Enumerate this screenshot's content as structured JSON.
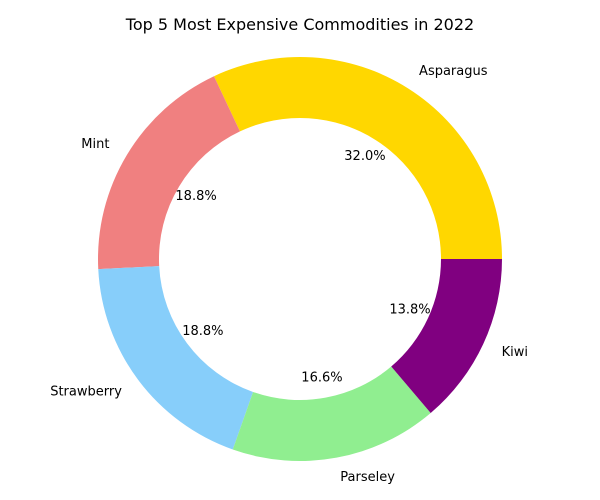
{
  "chart_data": {
    "type": "pie",
    "variant": "donut",
    "title": "Top 5 Most Expensive Commodities in 2022",
    "categories": [
      "Asparagus",
      "Mint",
      "Strawberry",
      "Parseley",
      "Kiwi"
    ],
    "values": [
      32.0,
      18.8,
      18.8,
      16.6,
      13.8
    ],
    "percent_labels": [
      "32.0%",
      "18.8%",
      "18.8%",
      "16.6%",
      "13.8%"
    ],
    "colors": [
      "#FFD700",
      "#F08080",
      "#87CEFA",
      "#90EE90",
      "#800080"
    ],
    "start_angle_deg": 0,
    "direction": "counterclockwise",
    "legend": "none"
  }
}
